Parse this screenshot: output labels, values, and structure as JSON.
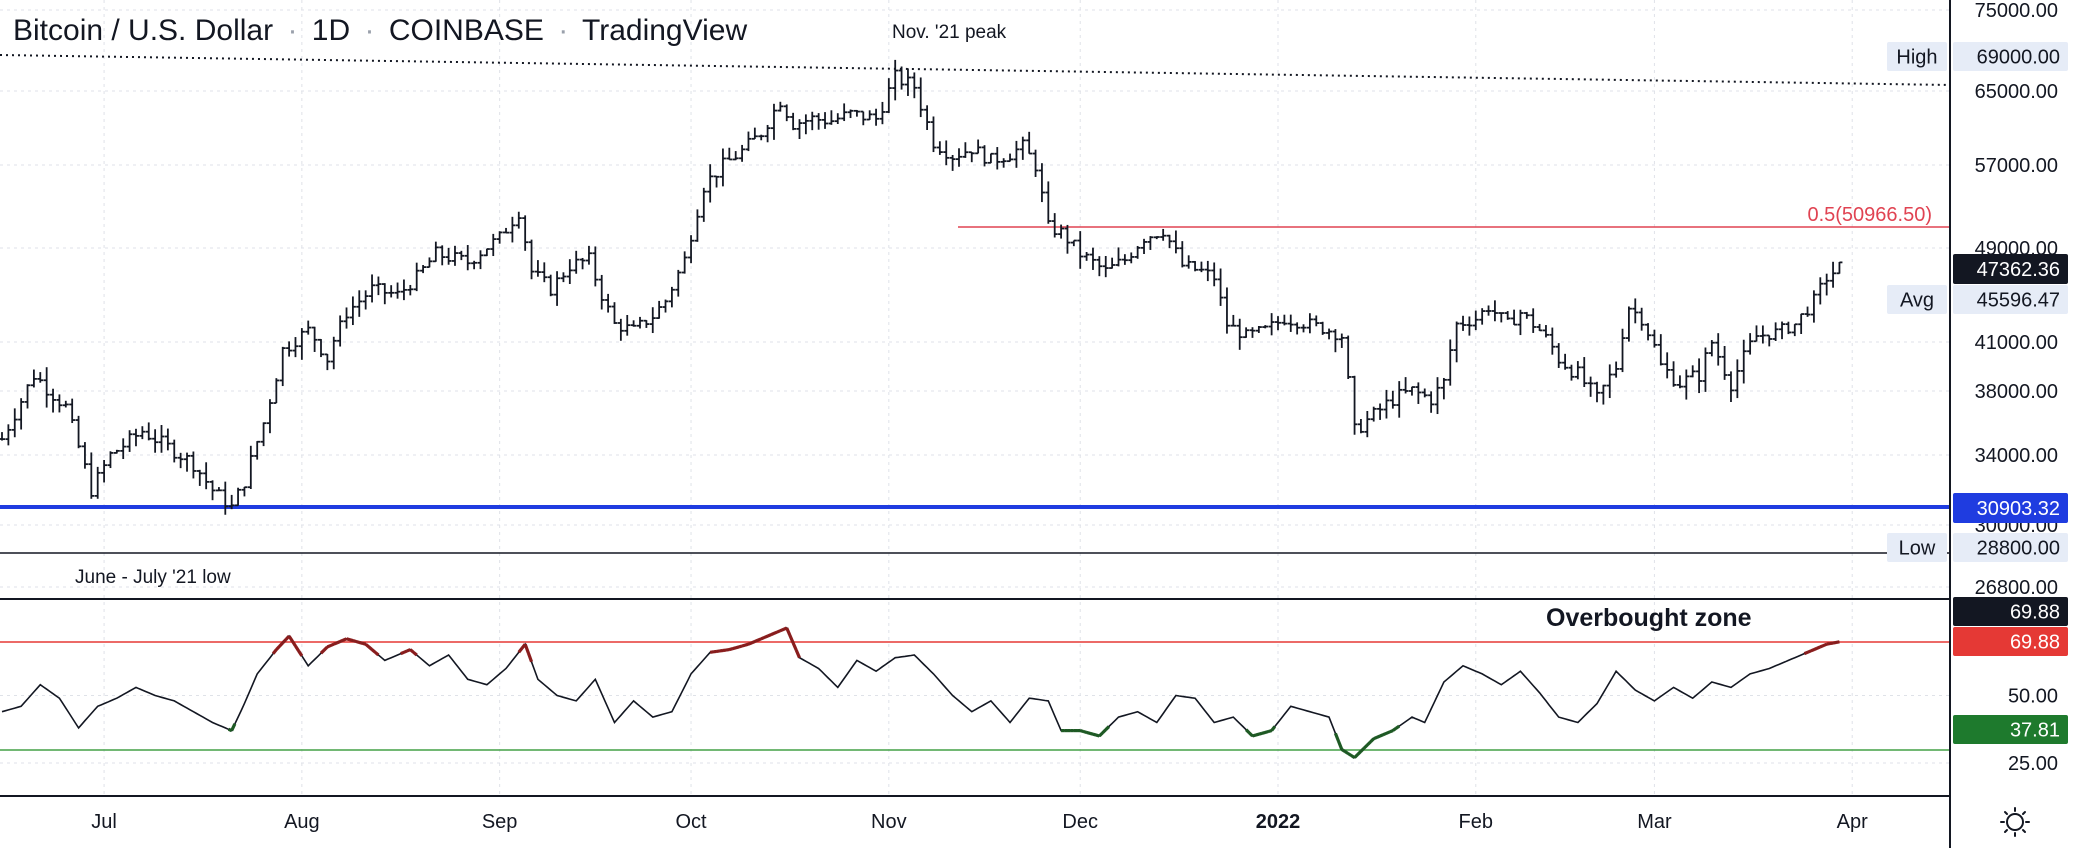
{
  "chart_data": {
    "type": "ohlc",
    "title": "Bitcoin / U.S. Dollar · 1D · COINBASE · TradingView",
    "title_parts": [
      "Bitcoin / U.S. Dollar",
      "1D",
      "COINBASE",
      "TradingView"
    ],
    "x_labels": [
      "Jul",
      "Aug",
      "Sep",
      "Oct",
      "Nov",
      "Dec",
      "2022",
      "Feb",
      "Mar",
      "Apr"
    ],
    "x_label_days": [
      16,
      47,
      78,
      108,
      139,
      169,
      200,
      231,
      259,
      290
    ],
    "price_axis": {
      "ticks": [
        75000,
        65000,
        57000,
        49000,
        41000,
        38000,
        34000,
        30000,
        26800
      ],
      "tick_labels": [
        "75000.00",
        "65000.00",
        "57000.00",
        "49000.00",
        "41000.00",
        "38000.00",
        "34000.00",
        "30000.00",
        "26800.00"
      ]
    },
    "levels": {
      "high": {
        "label": "High",
        "value": 69000,
        "value_text": "69000.00"
      },
      "low": {
        "label": "Low",
        "value": 28800,
        "value_text": "28800.00"
      },
      "avg": {
        "label": "Avg",
        "value": 45596.47,
        "value_text": "45596.47"
      },
      "last": {
        "value": 47362.36,
        "value_text": "47362.36"
      },
      "support": {
        "value": 30903.32,
        "value_text": "30903.32",
        "color": "#1f3ce0"
      },
      "fib": {
        "label": "0.5(50966.50)",
        "value": 50966.5,
        "color": "#e04352"
      }
    },
    "annotations": {
      "peak": "Nov. '21 peak",
      "low": "June - July '21 low",
      "overbought": "Overbought zone"
    },
    "rsi": {
      "ticks": [
        50,
        25
      ],
      "tick_labels": [
        "50.00",
        "25.00"
      ],
      "upper_band": 69.88,
      "lower_band": 30,
      "tags": [
        {
          "value": 69.88,
          "text": "69.88",
          "bg": "#131722"
        },
        {
          "value": 69.88,
          "text": "69.88",
          "bg": "#e53935"
        },
        {
          "value": 37.81,
          "text": "37.81",
          "bg": "#1e7a2d"
        }
      ]
    },
    "anchors": [
      [
        0,
        35000
      ],
      [
        5,
        39000
      ],
      [
        10,
        37000
      ],
      [
        14,
        32000
      ],
      [
        17,
        34000
      ],
      [
        22,
        35500
      ],
      [
        26,
        34500
      ],
      [
        30,
        33500
      ],
      [
        33,
        32000
      ],
      [
        36,
        31000
      ],
      [
        38,
        32500
      ],
      [
        41,
        36000
      ],
      [
        44,
        40500
      ],
      [
        48,
        42000
      ],
      [
        51,
        40000
      ],
      [
        54,
        43500
      ],
      [
        58,
        45500
      ],
      [
        62,
        45000
      ],
      [
        65,
        46500
      ],
      [
        68,
        48500
      ],
      [
        73,
        47800
      ],
      [
        78,
        50000
      ],
      [
        81,
        52500
      ],
      [
        83,
        47000
      ],
      [
        86,
        45500
      ],
      [
        89,
        47500
      ],
      [
        92,
        48000
      ],
      [
        94,
        45000
      ],
      [
        96,
        42500
      ],
      [
        99,
        42000
      ],
      [
        102,
        43200
      ],
      [
        104,
        44500
      ],
      [
        107,
        48000
      ],
      [
        110,
        55000
      ],
      [
        113,
        57000
      ],
      [
        116,
        58500
      ],
      [
        119,
        60500
      ],
      [
        122,
        64000
      ],
      [
        124,
        61500
      ],
      [
        127,
        62000
      ],
      [
        130,
        61800
      ],
      [
        133,
        62500
      ],
      [
        137,
        62000
      ],
      [
        140,
        66500
      ],
      [
        143,
        65500
      ],
      [
        146,
        59500
      ],
      [
        149,
        58000
      ],
      [
        152,
        58800
      ],
      [
        155,
        57500
      ],
      [
        158,
        58200
      ],
      [
        160,
        59000
      ],
      [
        162,
        57000
      ],
      [
        164,
        51000
      ],
      [
        166,
        50500
      ],
      [
        169,
        48500
      ],
      [
        173,
        47000
      ],
      [
        176,
        48000
      ],
      [
        179,
        50000
      ],
      [
        182,
        50700
      ],
      [
        185,
        47500
      ],
      [
        188,
        47000
      ],
      [
        190,
        46500
      ],
      [
        192,
        42500
      ],
      [
        195,
        41500
      ],
      [
        198,
        42000
      ],
      [
        201,
        43000
      ],
      [
        205,
        42500
      ],
      [
        208,
        42000
      ],
      [
        210,
        41500
      ],
      [
        212,
        35500
      ],
      [
        215,
        36500
      ],
      [
        218,
        37500
      ],
      [
        221,
        38000
      ],
      [
        224,
        37500
      ],
      [
        226,
        38500
      ],
      [
        228,
        42500
      ],
      [
        231,
        43000
      ],
      [
        233,
        44000
      ],
      [
        236,
        42500
      ],
      [
        238,
        43500
      ],
      [
        241,
        42000
      ],
      [
        244,
        40000
      ],
      [
        247,
        39000
      ],
      [
        250,
        37500
      ],
      [
        253,
        39500
      ],
      [
        255,
        44000
      ],
      [
        257,
        43000
      ],
      [
        260,
        39500
      ],
      [
        263,
        38500
      ],
      [
        266,
        39000
      ],
      [
        268,
        41000
      ],
      [
        271,
        38500
      ],
      [
        273,
        40000
      ],
      [
        275,
        41500
      ],
      [
        278,
        41800
      ],
      [
        281,
        42500
      ],
      [
        284,
        44500
      ],
      [
        286,
        46500
      ],
      [
        288,
        47362.36
      ]
    ],
    "rsi_anchors": [
      [
        0,
        44
      ],
      [
        3,
        46
      ],
      [
        6,
        54
      ],
      [
        9,
        49
      ],
      [
        12,
        38
      ],
      [
        15,
        46
      ],
      [
        18,
        49
      ],
      [
        21,
        53
      ],
      [
        24,
        50
      ],
      [
        27,
        48
      ],
      [
        30,
        44
      ],
      [
        33,
        40
      ],
      [
        36,
        37
      ],
      [
        38,
        47
      ],
      [
        40,
        58
      ],
      [
        43,
        67
      ],
      [
        45,
        72
      ],
      [
        48,
        61
      ],
      [
        51,
        68
      ],
      [
        54,
        71
      ],
      [
        57,
        69
      ],
      [
        60,
        63
      ],
      [
        64,
        67
      ],
      [
        67,
        61
      ],
      [
        70,
        65
      ],
      [
        73,
        56
      ],
      [
        76,
        54
      ],
      [
        79,
        60
      ],
      [
        82,
        69
      ],
      [
        84,
        56
      ],
      [
        87,
        50
      ],
      [
        90,
        48
      ],
      [
        93,
        56
      ],
      [
        96,
        40
      ],
      [
        99,
        48
      ],
      [
        102,
        42
      ],
      [
        105,
        44
      ],
      [
        108,
        58
      ],
      [
        111,
        66
      ],
      [
        114,
        67
      ],
      [
        117,
        69
      ],
      [
        120,
        72
      ],
      [
        123,
        75
      ],
      [
        125,
        64
      ],
      [
        128,
        60
      ],
      [
        131,
        53
      ],
      [
        134,
        63
      ],
      [
        137,
        59
      ],
      [
        140,
        64
      ],
      [
        143,
        65
      ],
      [
        146,
        58
      ],
      [
        149,
        50
      ],
      [
        152,
        44
      ],
      [
        155,
        48
      ],
      [
        158,
        40
      ],
      [
        161,
        49
      ],
      [
        164,
        48
      ],
      [
        166,
        37
      ],
      [
        169,
        37
      ],
      [
        172,
        35
      ],
      [
        175,
        42
      ],
      [
        178,
        44
      ],
      [
        181,
        40
      ],
      [
        184,
        50
      ],
      [
        187,
        49
      ],
      [
        190,
        40
      ],
      [
        193,
        42
      ],
      [
        196,
        35
      ],
      [
        199,
        37
      ],
      [
        202,
        46
      ],
      [
        205,
        44
      ],
      [
        208,
        42
      ],
      [
        210,
        30
      ],
      [
        212,
        27
      ],
      [
        215,
        34
      ],
      [
        218,
        37
      ],
      [
        221,
        42
      ],
      [
        223,
        40
      ],
      [
        226,
        55
      ],
      [
        229,
        61
      ],
      [
        232,
        58
      ],
      [
        235,
        54
      ],
      [
        238,
        59
      ],
      [
        241,
        51
      ],
      [
        244,
        42
      ],
      [
        247,
        40
      ],
      [
        250,
        47
      ],
      [
        253,
        59
      ],
      [
        256,
        52
      ],
      [
        259,
        48
      ],
      [
        262,
        53
      ],
      [
        265,
        49
      ],
      [
        268,
        55
      ],
      [
        271,
        53
      ],
      [
        274,
        58
      ],
      [
        277,
        60
      ],
      [
        280,
        63
      ],
      [
        283,
        66
      ],
      [
        286,
        69
      ],
      [
        288,
        69.88
      ]
    ]
  }
}
